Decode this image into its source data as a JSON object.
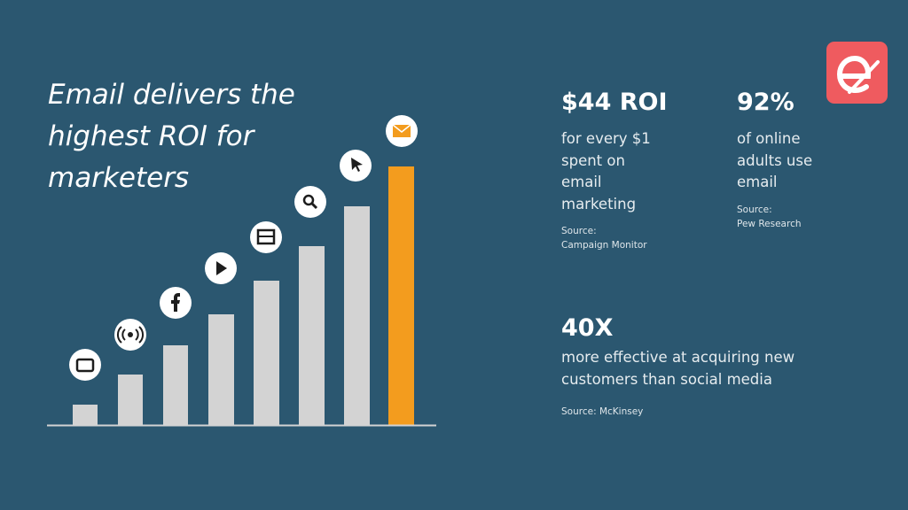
{
  "title": [
    "Email delivers the",
    "highest ROI for",
    "marketers"
  ],
  "stats": [
    {
      "headline": "$44 ROI",
      "body": [
        "for every $1",
        "spent on",
        "email",
        "marketing"
      ],
      "source": [
        "Source:",
        "Campaign Monitor"
      ]
    },
    {
      "headline": "92%",
      "body": [
        "of online",
        "adults use",
        "email"
      ],
      "source": [
        "Source:",
        "Pew Research"
      ]
    },
    {
      "headline": "40X",
      "body": [
        "more effective at acquiring new",
        "customers than social media"
      ],
      "source": [
        "Source: McKinsey"
      ]
    }
  ]
}
